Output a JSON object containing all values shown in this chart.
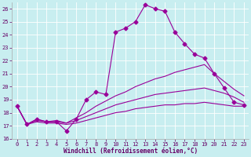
{
  "background_color": "#c8eef0",
  "grid_color": "#b0d8db",
  "line_color": "#990099",
  "marker": "D",
  "markersize": 2.5,
  "xlabel": "Windchill (Refroidissement éolien,°C)",
  "xlabel_color": "#660066",
  "tick_color": "#660066",
  "xlim": [
    -0.5,
    23.5
  ],
  "ylim": [
    16,
    26.5
  ],
  "yticks": [
    16,
    17,
    18,
    19,
    20,
    21,
    22,
    23,
    24,
    25,
    26
  ],
  "xticks": [
    0,
    1,
    2,
    3,
    4,
    5,
    6,
    7,
    8,
    9,
    10,
    11,
    12,
    13,
    14,
    15,
    16,
    17,
    18,
    19,
    20,
    21,
    22,
    23
  ],
  "lines": [
    {
      "x": [
        0,
        1,
        2,
        3,
        4,
        5,
        6,
        7,
        8,
        9,
        10,
        11,
        12,
        13,
        14,
        15,
        16,
        17,
        18,
        19,
        20,
        21,
        22,
        23
      ],
      "y": [
        18.5,
        17.1,
        17.5,
        17.3,
        17.3,
        16.6,
        17.5,
        19.0,
        19.6,
        19.4,
        24.2,
        24.5,
        25.0,
        26.3,
        26.0,
        25.8,
        24.2,
        23.3,
        22.5,
        22.2,
        21.0,
        19.9,
        18.8,
        18.6
      ],
      "has_markers": true
    },
    {
      "x": [
        0,
        1,
        2,
        3,
        4,
        5,
        6,
        7,
        8,
        9,
        10,
        11,
        12,
        13,
        14,
        15,
        16,
        17,
        18,
        19,
        20,
        21,
        22,
        23
      ],
      "y": [
        18.5,
        17.1,
        17.5,
        17.3,
        17.4,
        17.2,
        17.6,
        18.0,
        18.5,
        18.9,
        19.3,
        19.6,
        20.0,
        20.3,
        20.6,
        20.8,
        21.1,
        21.3,
        21.5,
        21.7,
        21.0,
        20.4,
        19.8,
        19.3
      ],
      "has_markers": false
    },
    {
      "x": [
        0,
        1,
        2,
        3,
        4,
        5,
        6,
        7,
        8,
        9,
        10,
        11,
        12,
        13,
        14,
        15,
        16,
        17,
        18,
        19,
        20,
        21,
        22,
        23
      ],
      "y": [
        18.5,
        17.1,
        17.4,
        17.3,
        17.3,
        17.2,
        17.4,
        17.7,
        18.0,
        18.3,
        18.6,
        18.8,
        19.0,
        19.2,
        19.4,
        19.5,
        19.6,
        19.7,
        19.8,
        19.9,
        19.7,
        19.5,
        19.2,
        18.8
      ],
      "has_markers": false
    },
    {
      "x": [
        0,
        1,
        2,
        3,
        4,
        5,
        6,
        7,
        8,
        9,
        10,
        11,
        12,
        13,
        14,
        15,
        16,
        17,
        18,
        19,
        20,
        21,
        22,
        23
      ],
      "y": [
        18.5,
        17.1,
        17.3,
        17.2,
        17.2,
        17.1,
        17.2,
        17.4,
        17.6,
        17.8,
        18.0,
        18.1,
        18.3,
        18.4,
        18.5,
        18.6,
        18.6,
        18.7,
        18.7,
        18.8,
        18.7,
        18.6,
        18.5,
        18.5
      ],
      "has_markers": false
    }
  ]
}
